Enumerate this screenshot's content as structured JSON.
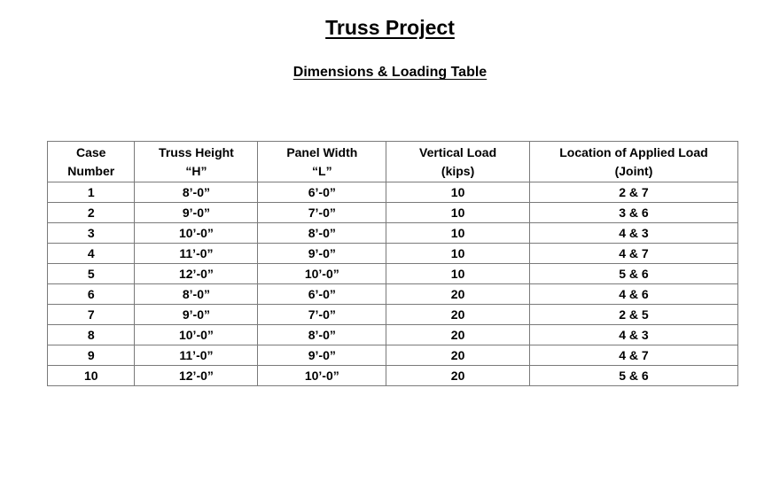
{
  "title": "Truss Project",
  "subtitle": "Dimensions & Loading Table",
  "table": {
    "headers": [
      {
        "line1": "Case",
        "line2": "Number"
      },
      {
        "line1": "Truss Height",
        "line2": "“H”"
      },
      {
        "line1": "Panel Width",
        "line2": "“L”"
      },
      {
        "line1": "Vertical Load",
        "line2": "(kips)"
      },
      {
        "line1": "Location of Applied Load",
        "line2": "(Joint)"
      }
    ],
    "rows": [
      [
        "1",
        "8’-0”",
        "6’-0”",
        "10",
        "2 & 7"
      ],
      [
        "2",
        "9’-0”",
        "7’-0”",
        "10",
        "3 & 6"
      ],
      [
        "3",
        "10’-0”",
        "8’-0”",
        "10",
        "4 & 3"
      ],
      [
        "4",
        "11’-0”",
        "9’-0”",
        "10",
        "4 & 7"
      ],
      [
        "5",
        "12’-0”",
        "10’-0”",
        "10",
        "5 & 6"
      ],
      [
        "6",
        "8’-0”",
        "6’-0”",
        "20",
        "4 & 6"
      ],
      [
        "7",
        "9’-0”",
        "7’-0”",
        "20",
        "2 & 5"
      ],
      [
        "8",
        "10’-0”",
        "8’-0”",
        "20",
        "4 & 3"
      ],
      [
        "9",
        "11’-0”",
        "9’-0”",
        "20",
        "4 & 7"
      ],
      [
        "10",
        "12’-0”",
        "10’-0”",
        "20",
        "5 & 6"
      ]
    ]
  }
}
